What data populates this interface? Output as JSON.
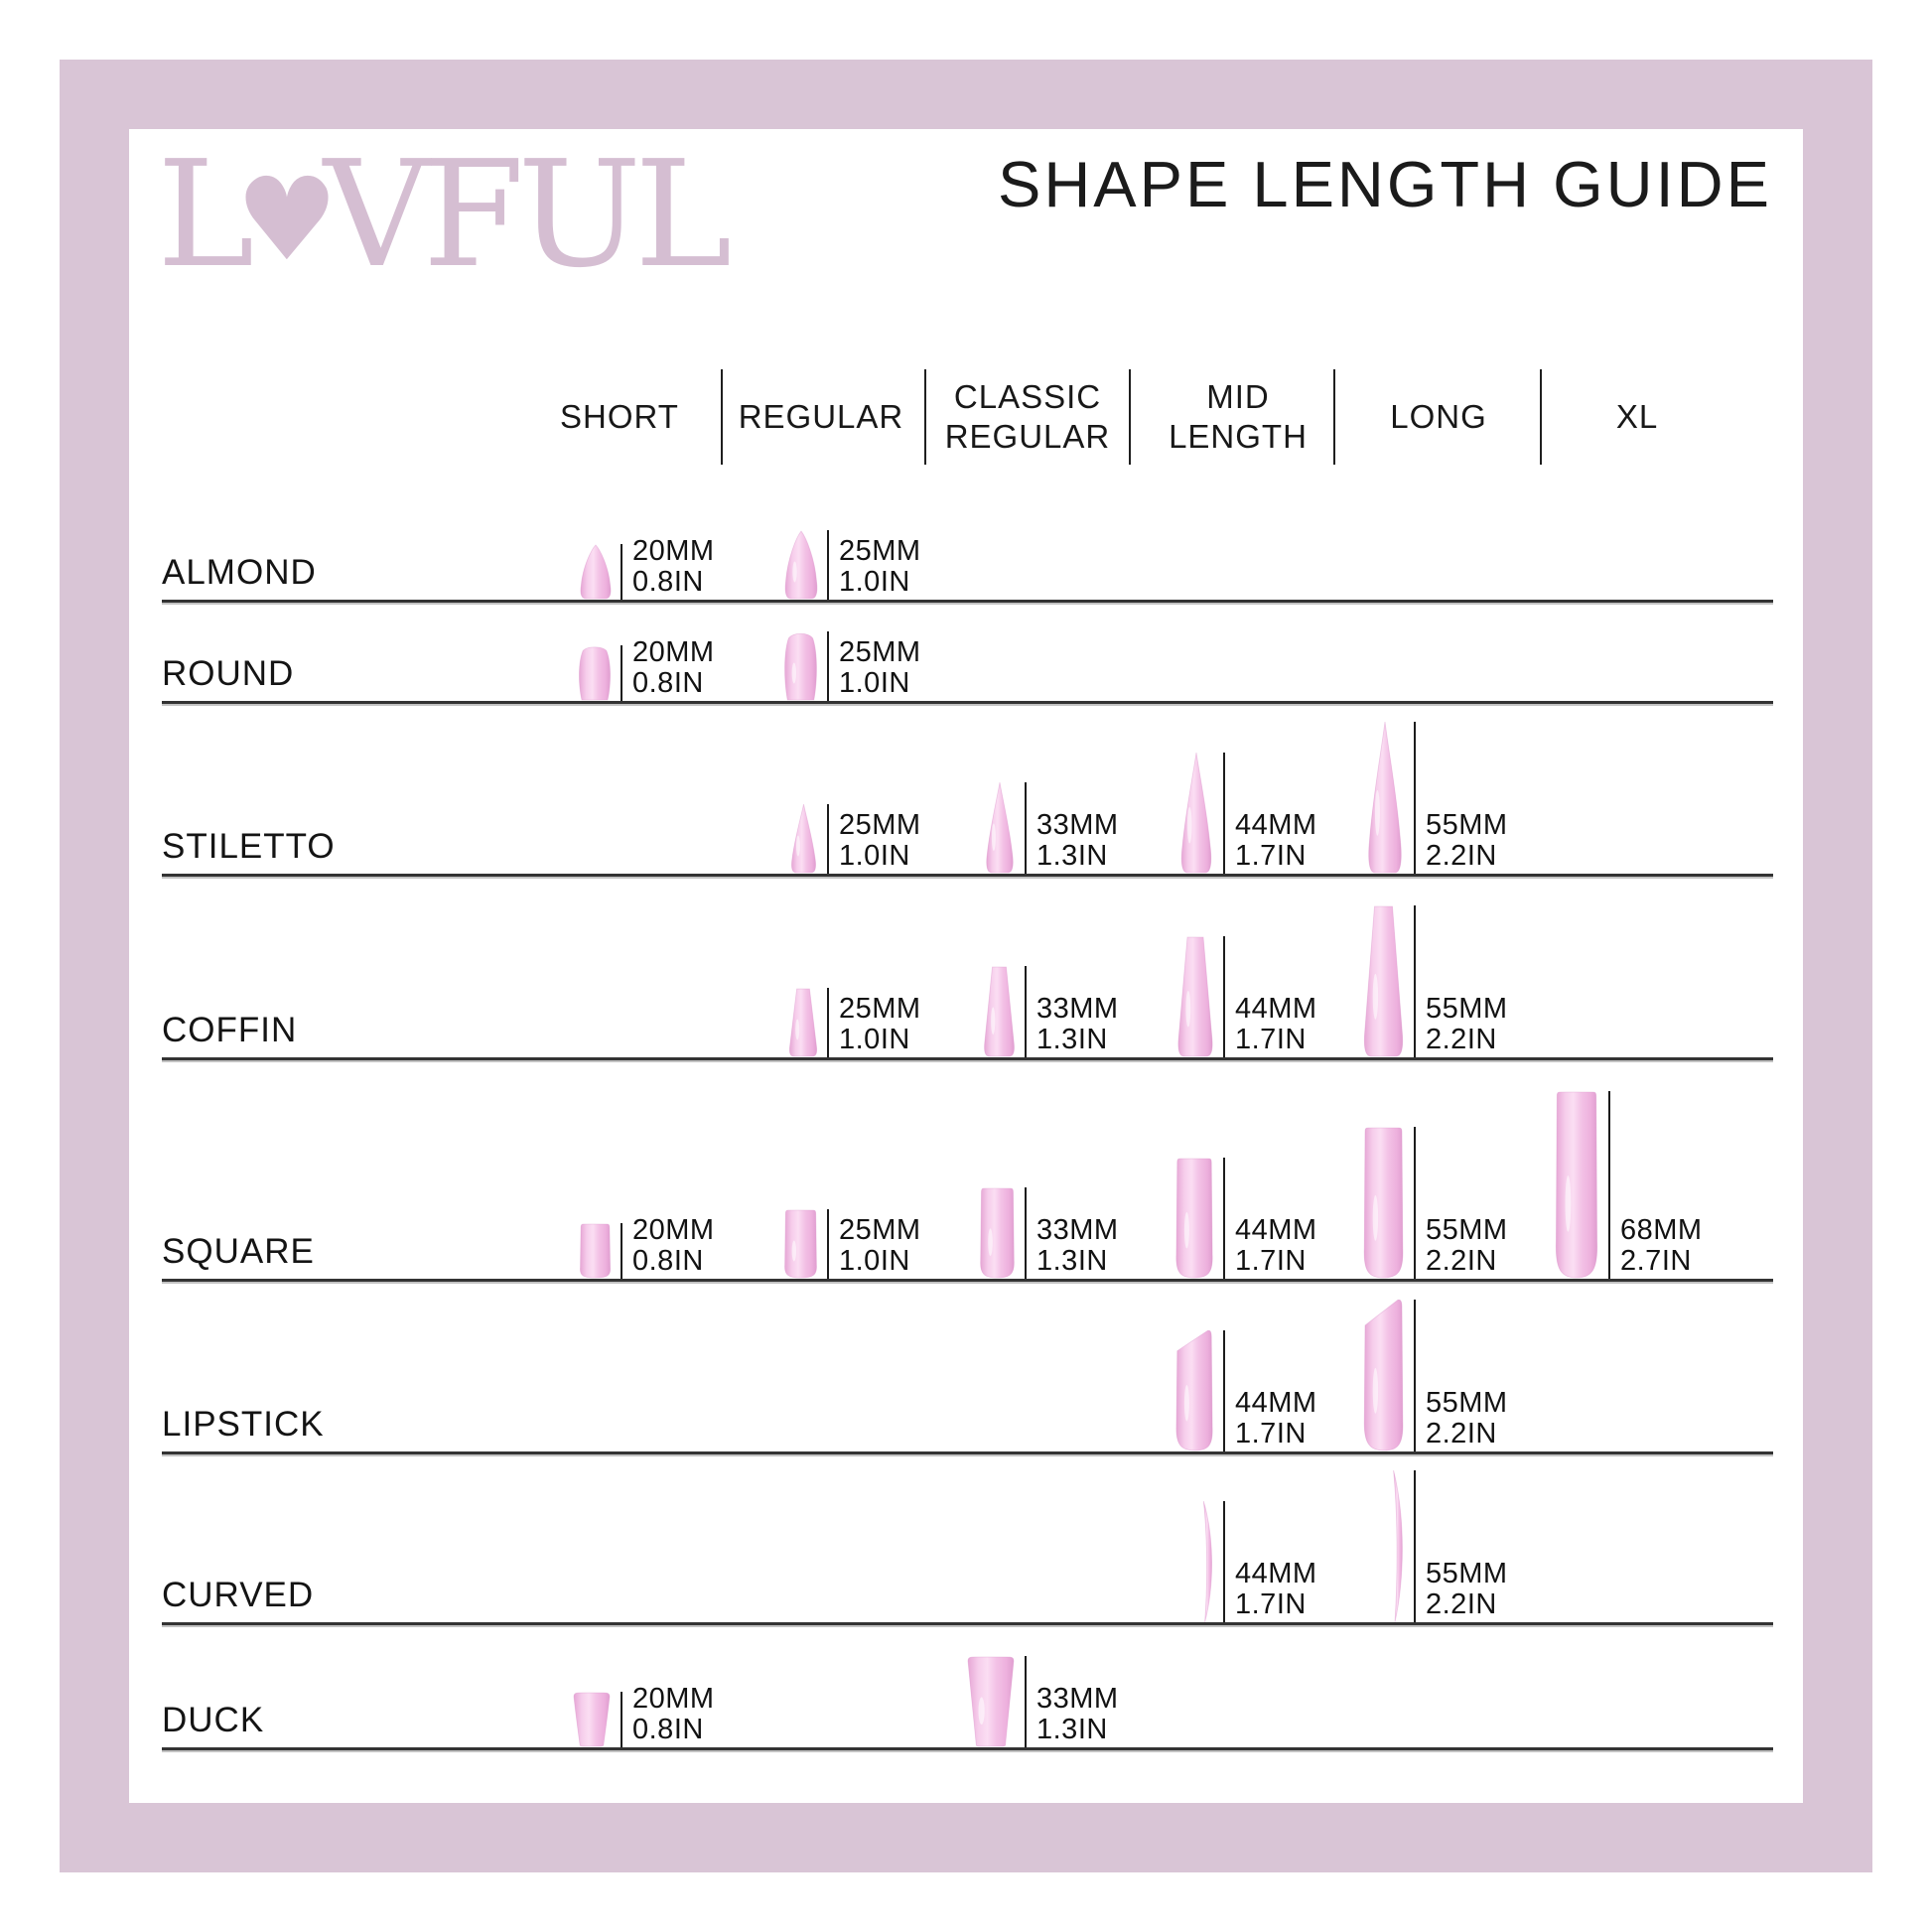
{
  "brand": {
    "logo_l": "L",
    "logo_heart": "♥",
    "logo_rest": "VFUL",
    "logo_full": "LOVFUL"
  },
  "title": "SHAPE LENGTH GUIDE",
  "colors": {
    "frame": "#d9c5d6",
    "logo": "#d5bed2",
    "nail_base": "#f3c2e6",
    "nail_edge": "#e6a6d5",
    "text": "#161616"
  },
  "columns": [
    {
      "id": "short",
      "label": "SHORT",
      "label_lines": [
        "SHORT"
      ]
    },
    {
      "id": "regular",
      "label": "REGULAR",
      "label_lines": [
        "REGULAR"
      ]
    },
    {
      "id": "classic-regular",
      "label": "CLASSIC REGULAR",
      "label_lines": [
        "CLASSIC",
        "REGULAR"
      ]
    },
    {
      "id": "mid-length",
      "label": "MID LENGTH",
      "label_lines": [
        "MID",
        "LENGTH"
      ]
    },
    {
      "id": "long",
      "label": "LONG",
      "label_lines": [
        "LONG"
      ]
    },
    {
      "id": "xl",
      "label": "XL",
      "label_lines": [
        "XL"
      ]
    }
  ],
  "rows": [
    {
      "label": "ALMOND",
      "cells": [
        {
          "column": "SHORT",
          "mm": "20MM",
          "in": "0.8IN"
        },
        {
          "column": "REGULAR",
          "mm": "25MM",
          "in": "1.0IN"
        }
      ]
    },
    {
      "label": "ROUND",
      "cells": [
        {
          "column": "SHORT",
          "mm": "20MM",
          "in": "0.8IN"
        },
        {
          "column": "REGULAR",
          "mm": "25MM",
          "in": "1.0IN"
        }
      ]
    },
    {
      "label": "STILETTO",
      "cells": [
        {
          "column": "REGULAR",
          "mm": "25MM",
          "in": "1.0IN"
        },
        {
          "column": "CLASSIC REGULAR",
          "mm": "33MM",
          "in": "1.3IN"
        },
        {
          "column": "MID LENGTH",
          "mm": "44MM",
          "in": "1.7IN"
        },
        {
          "column": "LONG",
          "mm": "55MM",
          "in": "2.2IN"
        }
      ]
    },
    {
      "label": "COFFIN",
      "cells": [
        {
          "column": "REGULAR",
          "mm": "25MM",
          "in": "1.0IN"
        },
        {
          "column": "CLASSIC REGULAR",
          "mm": "33MM",
          "in": "1.3IN"
        },
        {
          "column": "MID LENGTH",
          "mm": "44MM",
          "in": "1.7IN"
        },
        {
          "column": "LONG",
          "mm": "55MM",
          "in": "2.2IN"
        }
      ]
    },
    {
      "label": "SQUARE",
      "cells": [
        {
          "column": "SHORT",
          "mm": "20MM",
          "in": "0.8IN"
        },
        {
          "column": "REGULAR",
          "mm": "25MM",
          "in": "1.0IN"
        },
        {
          "column": "CLASSIC REGULAR",
          "mm": "33MM",
          "in": "1.3IN"
        },
        {
          "column": "MID LENGTH",
          "mm": "44MM",
          "in": "1.7IN"
        },
        {
          "column": "LONG",
          "mm": "55MM",
          "in": "2.2IN"
        },
        {
          "column": "XL",
          "mm": "68MM",
          "in": "2.7IN"
        }
      ]
    },
    {
      "label": "LIPSTICK",
      "cells": [
        {
          "column": "MID LENGTH",
          "mm": "44MM",
          "in": "1.7IN"
        },
        {
          "column": "LONG",
          "mm": "55MM",
          "in": "2.2IN"
        }
      ]
    },
    {
      "label": "CURVED",
      "cells": [
        {
          "column": "MID LENGTH",
          "mm": "44MM",
          "in": "1.7IN"
        },
        {
          "column": "LONG",
          "mm": "55MM",
          "in": "2.2IN"
        }
      ]
    },
    {
      "label": "DUCK",
      "cells": [
        {
          "column": "SHORT",
          "mm": "20MM",
          "in": "0.8IN"
        },
        {
          "column": "CLASSIC REGULAR",
          "mm": "33MM",
          "in": "1.3IN"
        }
      ]
    }
  ],
  "chart_data": {
    "type": "table",
    "title": "SHAPE LENGTH GUIDE",
    "columns": [
      "SHORT",
      "REGULAR",
      "CLASSIC REGULAR",
      "MID LENGTH",
      "LONG",
      "XL"
    ],
    "rows": [
      {
        "shape": "ALMOND",
        "lengths_mm": [
          20,
          25,
          null,
          null,
          null,
          null
        ],
        "lengths_in": [
          0.8,
          1.0,
          null,
          null,
          null,
          null
        ]
      },
      {
        "shape": "ROUND",
        "lengths_mm": [
          20,
          25,
          null,
          null,
          null,
          null
        ],
        "lengths_in": [
          0.8,
          1.0,
          null,
          null,
          null,
          null
        ]
      },
      {
        "shape": "STILETTO",
        "lengths_mm": [
          null,
          25,
          33,
          44,
          55,
          null
        ],
        "lengths_in": [
          null,
          1.0,
          1.3,
          1.7,
          2.2,
          null
        ]
      },
      {
        "shape": "COFFIN",
        "lengths_mm": [
          null,
          25,
          33,
          44,
          55,
          null
        ],
        "lengths_in": [
          null,
          1.0,
          1.3,
          1.7,
          2.2,
          null
        ]
      },
      {
        "shape": "SQUARE",
        "lengths_mm": [
          20,
          25,
          33,
          44,
          55,
          68
        ],
        "lengths_in": [
          0.8,
          1.0,
          1.3,
          1.7,
          2.2,
          2.7
        ]
      },
      {
        "shape": "LIPSTICK",
        "lengths_mm": [
          null,
          null,
          null,
          44,
          55,
          null
        ],
        "lengths_in": [
          null,
          null,
          null,
          1.7,
          2.2,
          null
        ]
      },
      {
        "shape": "CURVED",
        "lengths_mm": [
          null,
          null,
          null,
          44,
          55,
          null
        ],
        "lengths_in": [
          null,
          null,
          null,
          1.7,
          2.2,
          null
        ]
      },
      {
        "shape": "DUCK",
        "lengths_mm": [
          20,
          null,
          33,
          null,
          null,
          null
        ],
        "lengths_in": [
          0.8,
          null,
          1.3,
          null,
          null,
          null
        ]
      }
    ]
  }
}
